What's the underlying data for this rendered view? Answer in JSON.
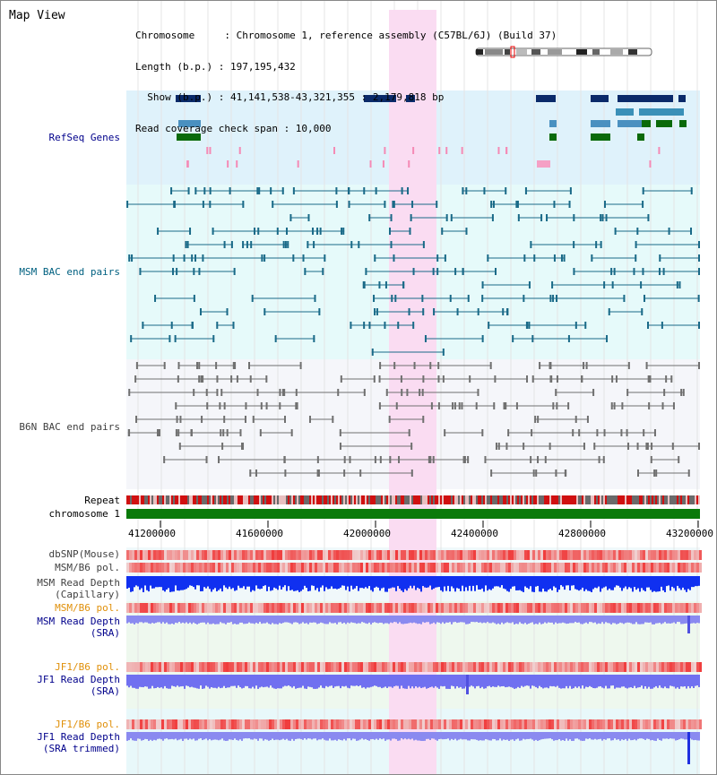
{
  "window": {
    "title": "Map View"
  },
  "info": {
    "lines": [
      "Chromosome     : Chromosome 1, reference assembly (C57BL/6J) (Build 37)",
      "Length (b.p.) : 197,195,432",
      "  Show (b.p.) : 41,141,538-43,321,355 : 2,179,818 bp",
      "Read coverage check span : 10,000"
    ]
  },
  "tracks": {
    "refseq": "RefSeq Genes",
    "msm_bac": "MSM BAC end pairs",
    "b6n_bac": "B6N BAC end pairs",
    "repeat": "Repeat",
    "chromosome": "chromosome 1",
    "dbsnp": "dbSNP(Mouse)",
    "msm_pol_1": "MSM/B6 pol.",
    "msm_depth_cap": "MSM Read Depth\n(Capillary)",
    "msm_pol_2": "MSM/B6 pol.",
    "msm_depth_sra": "MSM Read Depth\n(SRA)",
    "jf1_pol_1": "JF1/B6 pol.",
    "jf1_depth_sra": "JF1 Read Depth\n(SRA)",
    "jf1_pol_2": "JF1/B6 pol.",
    "jf1_depth_trim": "JF1 Read Depth\n(SRA trimmed)"
  },
  "axis": {
    "ticks": [
      "41200000",
      "41600000",
      "42000000",
      "42400000",
      "42800000",
      "43200000"
    ]
  },
  "colors": {
    "refseq_bg": "#dff2fb",
    "msm_bg": "#e6fafa",
    "b6n_bg": "#f5f6fa",
    "highlight": "#fadcf2",
    "chrom_bar": "#0a7a0a"
  }
}
